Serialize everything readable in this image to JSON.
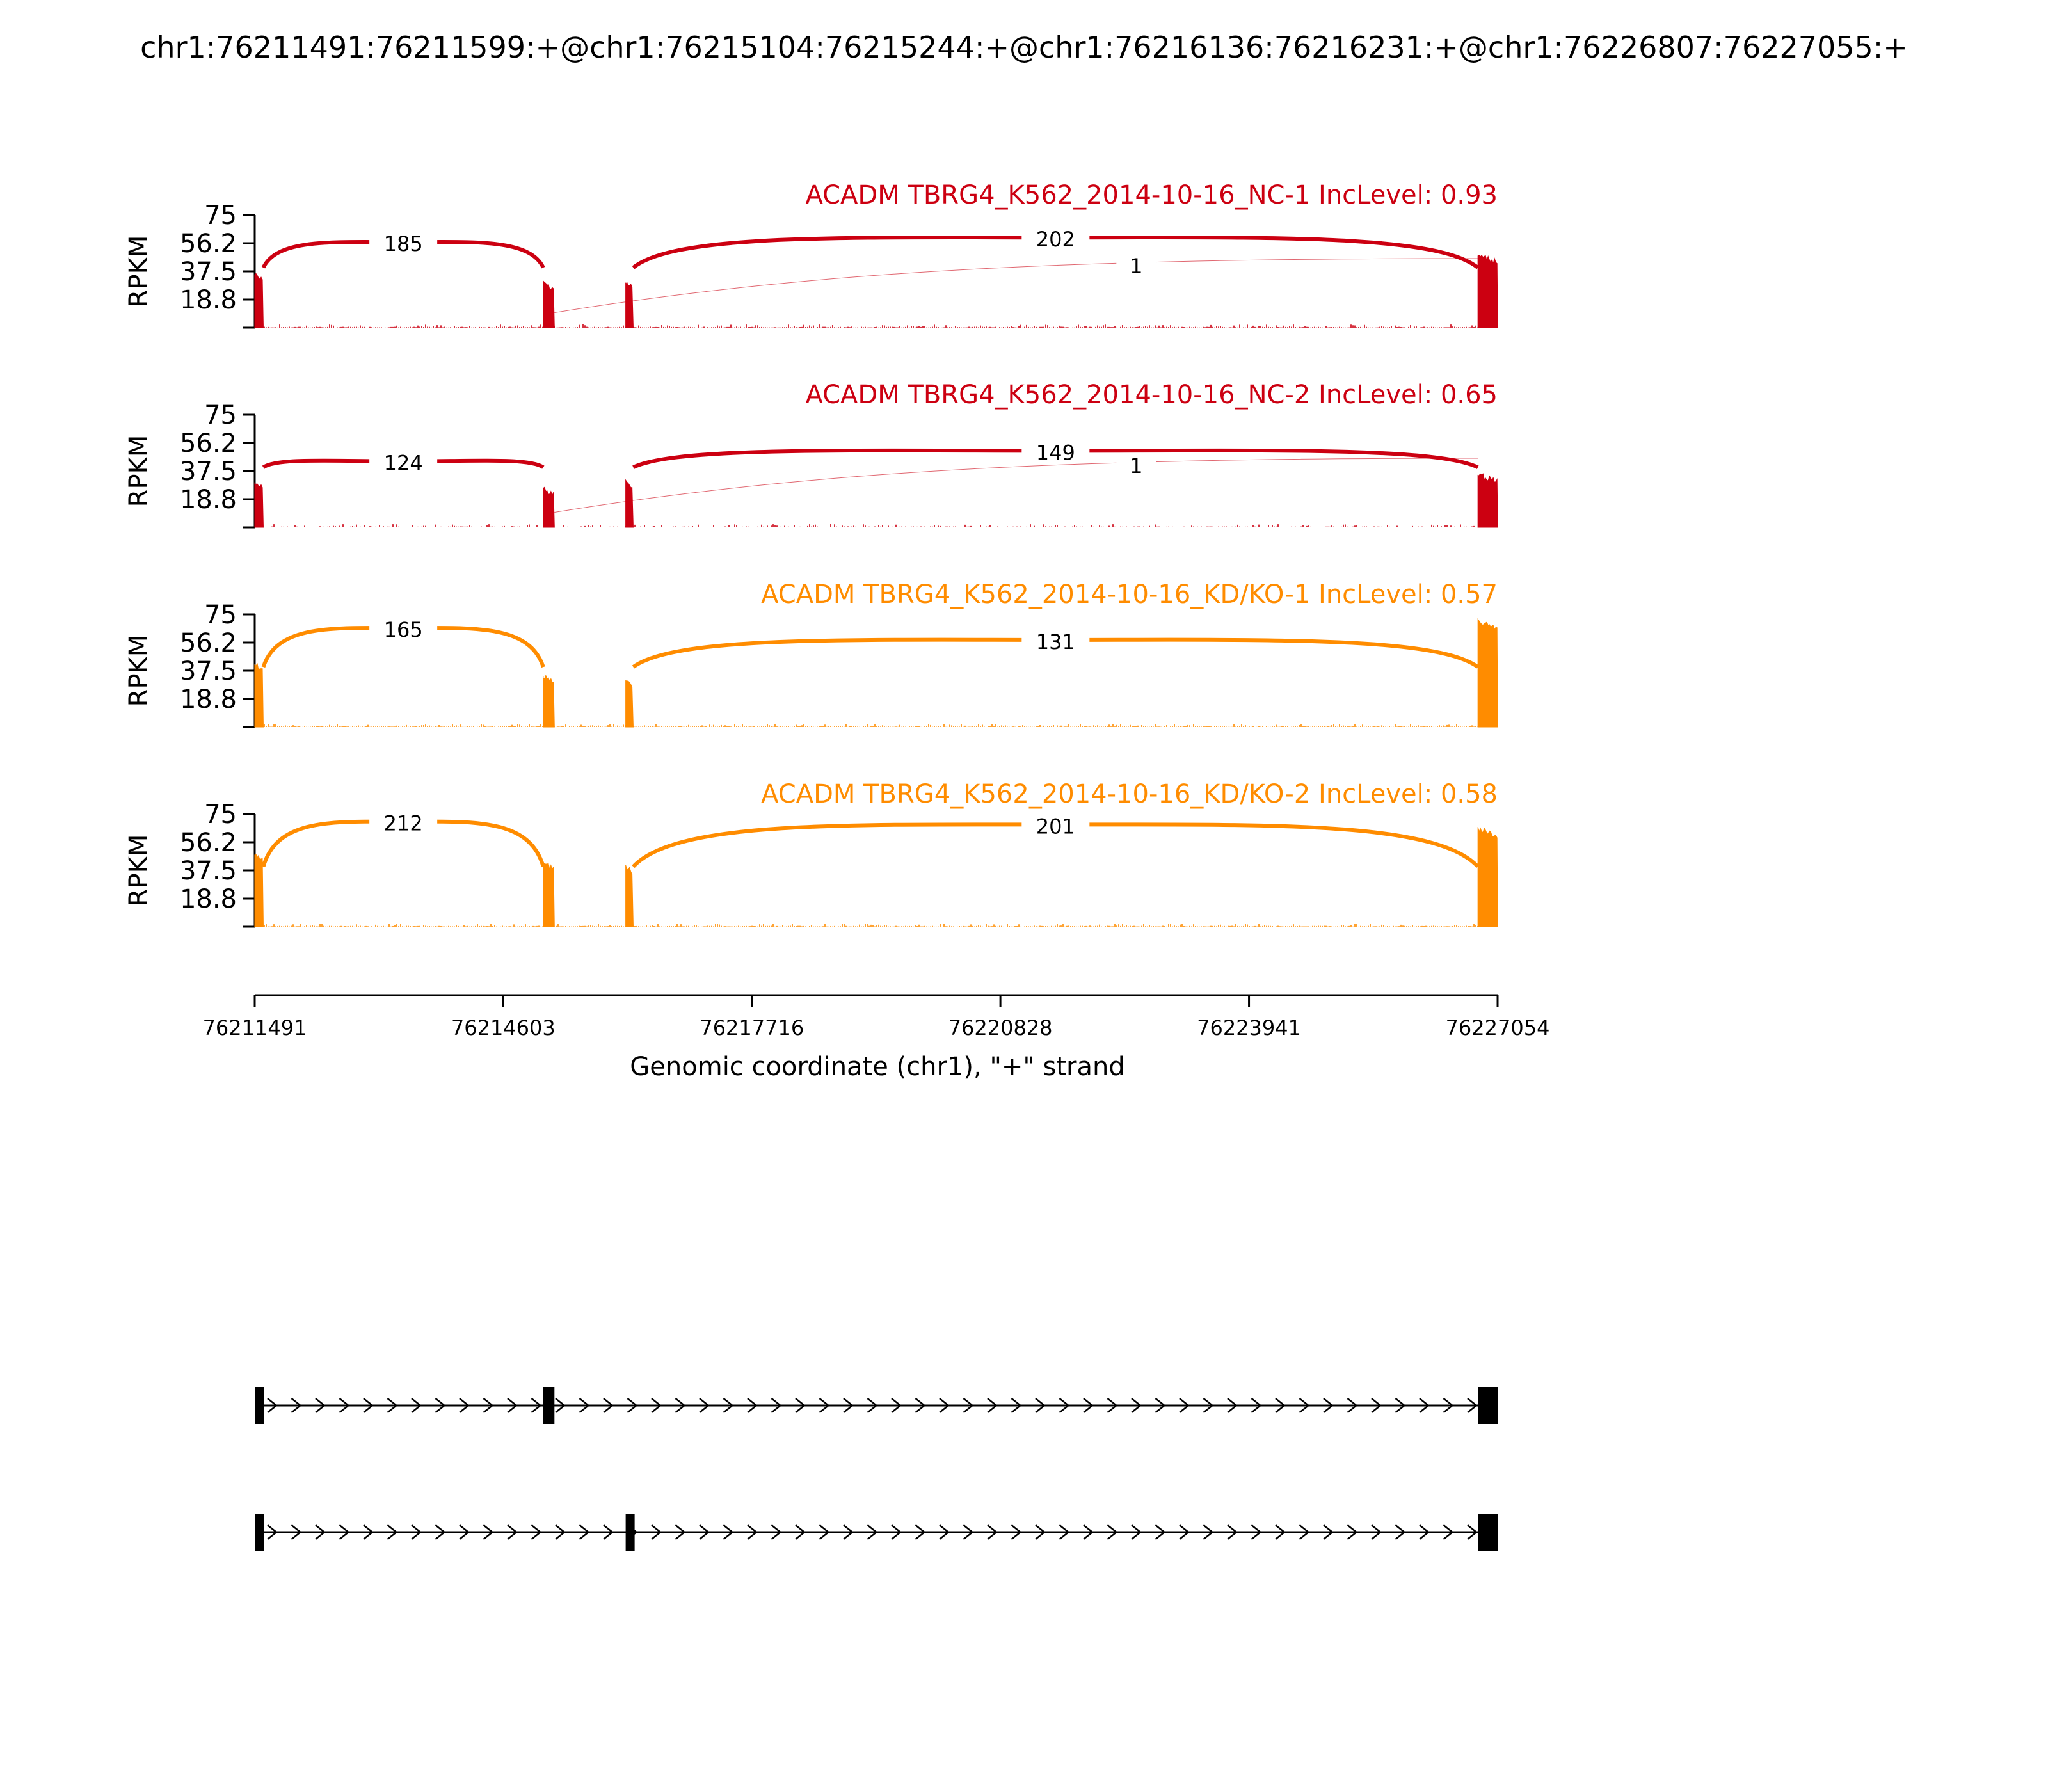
{
  "title": "chr1:76211491:76211599:+@chr1:76215104:76215244:+@chr1:76216136:76216231:+@chr1:76226807:76227055:+",
  "chart_data": {
    "type": "sashimi",
    "x_axis": {
      "label": "Genomic coordinate (chr1), \"+\" strand",
      "range": [
        76211491,
        76227054
      ],
      "ticks": [
        76211491,
        76214603,
        76217716,
        76220828,
        76223941,
        76227054
      ]
    },
    "y_axis": {
      "label": "RPKM",
      "range": [
        0,
        75
      ],
      "ticks": [
        "75",
        "56.2",
        "37.5",
        "18.8"
      ]
    },
    "exons": [
      {
        "start": 76211491,
        "end": 76211599
      },
      {
        "start": 76215104,
        "end": 76215244
      },
      {
        "start": 76216136,
        "end": 76216231
      },
      {
        "start": 76226807,
        "end": 76227055
      }
    ],
    "tracks": [
      {
        "label": "ACADM TBRG4_K562_2014-10-16_NC-1 IncLevel: 0.93",
        "color": "#cc0011",
        "exon_heights": [
          35,
          30,
          30,
          48
        ],
        "junctions": [
          {
            "from": 76211599,
            "to": 76215104,
            "count": "185",
            "height": 57,
            "label_pos": 0.5
          },
          {
            "from": 76216231,
            "to": 76226807,
            "count": "202",
            "height": 60,
            "label_pos": 0.5
          },
          {
            "from": 76215244,
            "to": 76226807,
            "count": "1",
            "height": 50,
            "label_pos": 0.5,
            "thin": true
          }
        ]
      },
      {
        "label": "ACADM TBRG4_K562_2014-10-16_NC-2 IncLevel: 0.65",
        "color": "#cc0011",
        "exon_heights": [
          30,
          26,
          30,
          35
        ],
        "junctions": [
          {
            "from": 76211599,
            "to": 76215104,
            "count": "124",
            "height": 44,
            "label_pos": 0.5
          },
          {
            "from": 76216231,
            "to": 76226807,
            "count": "149",
            "height": 51,
            "label_pos": 0.5
          },
          {
            "from": 76215244,
            "to": 76226807,
            "count": "1",
            "height": 45,
            "label_pos": 0.5,
            "thin": true
          }
        ]
      },
      {
        "label": "ACADM TBRG4_K562_2014-10-16_KD/KO-1 IncLevel: 0.57",
        "color": "#ff8c00",
        "exon_heights": [
          42,
          34,
          30,
          70
        ],
        "junctions": [
          {
            "from": 76211599,
            "to": 76215104,
            "count": "165",
            "height": 66,
            "label_pos": 0.5
          },
          {
            "from": 76216231,
            "to": 76226807,
            "count": "131",
            "height": 58,
            "label_pos": 0.5
          }
        ]
      },
      {
        "label": "ACADM TBRG4_K562_2014-10-16_KD/KO-2 IncLevel: 0.58",
        "color": "#ff8c00",
        "exon_heights": [
          48,
          42,
          40,
          65
        ],
        "junctions": [
          {
            "from": 76211599,
            "to": 76215104,
            "count": "212",
            "height": 70,
            "label_pos": 0.5
          },
          {
            "from": 76216231,
            "to": 76226807,
            "count": "201",
            "height": 68,
            "label_pos": 0.5
          }
        ]
      }
    ],
    "isoforms": [
      {
        "exons": [
          [
            76211491,
            76211599
          ],
          [
            76215104,
            76215244
          ],
          [
            76226807,
            76227055
          ]
        ]
      },
      {
        "exons": [
          [
            76211491,
            76211599
          ],
          [
            76216136,
            76216231
          ],
          [
            76226807,
            76227055
          ]
        ]
      }
    ]
  }
}
